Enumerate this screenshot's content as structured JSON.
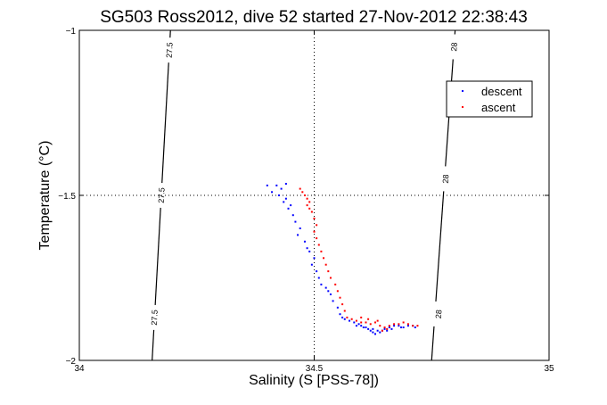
{
  "chart_data": {
    "type": "scatter",
    "title": "SG503 Ross2012, dive 52 started 27-Nov-2012 22:38:43",
    "xlabel": "Salinity (S [PSS-78])",
    "ylabel": "Temperature (°C)",
    "xlim": [
      34,
      35
    ],
    "ylim": [
      -2,
      -1
    ],
    "xticks": [
      "34",
      "34.5",
      "35"
    ],
    "yticks": [
      "-1",
      "-1.5",
      "-2"
    ],
    "grid": "dotted",
    "legend_position": "top-right",
    "contours": [
      {
        "level": "27.5",
        "points": [
          [
            34.155,
            -2.0
          ],
          [
            34.194,
            -1.0
          ]
        ],
        "labels": [
          {
            "s": 34.192,
            "t": -1.06
          },
          {
            "s": 34.175,
            "t": -1.5
          },
          {
            "s": 34.16,
            "t": -1.87
          }
        ]
      },
      {
        "level": "28",
        "points": [
          [
            34.75,
            -2.0
          ],
          [
            34.8,
            -1.0
          ]
        ],
        "labels": [
          {
            "s": 34.798,
            "t": -1.05
          },
          {
            "s": 34.78,
            "t": -1.45
          },
          {
            "s": 34.765,
            "t": -1.86
          }
        ]
      }
    ],
    "series": [
      {
        "name": "descent",
        "color": "#0000ff",
        "marker": "dot",
        "points": [
          [
            34.4,
            -1.47
          ],
          [
            34.42,
            -1.47
          ],
          [
            34.44,
            -1.465
          ],
          [
            34.43,
            -1.48
          ],
          [
            34.41,
            -1.49
          ],
          [
            34.425,
            -1.5
          ],
          [
            34.44,
            -1.51
          ],
          [
            34.435,
            -1.52
          ],
          [
            34.45,
            -1.53
          ],
          [
            34.445,
            -1.54
          ],
          [
            34.455,
            -1.56
          ],
          [
            34.46,
            -1.58
          ],
          [
            34.47,
            -1.6
          ],
          [
            34.465,
            -1.62
          ],
          [
            34.48,
            -1.64
          ],
          [
            34.485,
            -1.66
          ],
          [
            34.49,
            -1.67
          ],
          [
            34.5,
            -1.69
          ],
          [
            34.495,
            -1.71
          ],
          [
            34.505,
            -1.73
          ],
          [
            34.51,
            -1.75
          ],
          [
            34.515,
            -1.77
          ],
          [
            34.525,
            -1.78
          ],
          [
            34.53,
            -1.79
          ],
          [
            34.535,
            -1.8
          ],
          [
            34.54,
            -1.82
          ],
          [
            34.55,
            -1.84
          ],
          [
            34.555,
            -1.86
          ],
          [
            34.56,
            -1.87
          ],
          [
            34.565,
            -1.875
          ],
          [
            34.575,
            -1.88
          ],
          [
            34.585,
            -1.885
          ],
          [
            34.595,
            -1.89
          ],
          [
            34.6,
            -1.895
          ],
          [
            34.61,
            -1.9
          ],
          [
            34.615,
            -1.905
          ],
          [
            34.62,
            -1.91
          ],
          [
            34.625,
            -1.915
          ],
          [
            34.63,
            -1.92
          ],
          [
            34.64,
            -1.915
          ],
          [
            34.645,
            -1.91
          ],
          [
            34.65,
            -1.905
          ],
          [
            34.66,
            -1.9
          ],
          [
            34.67,
            -1.895
          ],
          [
            34.68,
            -1.895
          ],
          [
            34.685,
            -1.9
          ],
          [
            34.69,
            -1.9
          ],
          [
            34.7,
            -1.895
          ],
          [
            34.71,
            -1.895
          ],
          [
            34.715,
            -1.9
          ],
          [
            34.59,
            -1.895
          ],
          [
            34.605,
            -1.9
          ],
          [
            34.625,
            -1.905
          ],
          [
            34.635,
            -1.91
          ],
          [
            34.655,
            -1.91
          ],
          [
            34.665,
            -1.905
          ]
        ]
      },
      {
        "name": "ascent",
        "color": "#ff0000",
        "marker": "dot",
        "points": [
          [
            34.47,
            -1.48
          ],
          [
            34.475,
            -1.49
          ],
          [
            34.48,
            -1.5
          ],
          [
            34.485,
            -1.51
          ],
          [
            34.49,
            -1.52
          ],
          [
            34.485,
            -1.53
          ],
          [
            34.49,
            -1.54
          ],
          [
            34.495,
            -1.55
          ],
          [
            34.5,
            -1.57
          ],
          [
            34.505,
            -1.59
          ],
          [
            34.5,
            -1.61
          ],
          [
            34.505,
            -1.63
          ],
          [
            34.51,
            -1.65
          ],
          [
            34.515,
            -1.67
          ],
          [
            34.52,
            -1.69
          ],
          [
            34.525,
            -1.71
          ],
          [
            34.53,
            -1.73
          ],
          [
            34.535,
            -1.75
          ],
          [
            34.545,
            -1.77
          ],
          [
            34.55,
            -1.79
          ],
          [
            34.555,
            -1.81
          ],
          [
            34.56,
            -1.83
          ],
          [
            34.565,
            -1.85
          ],
          [
            34.57,
            -1.87
          ],
          [
            34.58,
            -1.875
          ],
          [
            34.59,
            -1.88
          ],
          [
            34.6,
            -1.885
          ],
          [
            34.61,
            -1.885
          ],
          [
            34.62,
            -1.89
          ],
          [
            34.63,
            -1.885
          ],
          [
            34.635,
            -1.88
          ],
          [
            34.64,
            -1.895
          ],
          [
            34.645,
            -1.91
          ],
          [
            34.65,
            -1.9
          ],
          [
            34.66,
            -1.895
          ],
          [
            34.67,
            -1.89
          ],
          [
            34.68,
            -1.89
          ],
          [
            34.69,
            -1.885
          ],
          [
            34.7,
            -1.89
          ],
          [
            34.71,
            -1.895
          ],
          [
            34.72,
            -1.895
          ],
          [
            34.6,
            -1.87
          ],
          [
            34.615,
            -1.875
          ],
          [
            34.655,
            -1.905
          ]
        ]
      }
    ]
  }
}
